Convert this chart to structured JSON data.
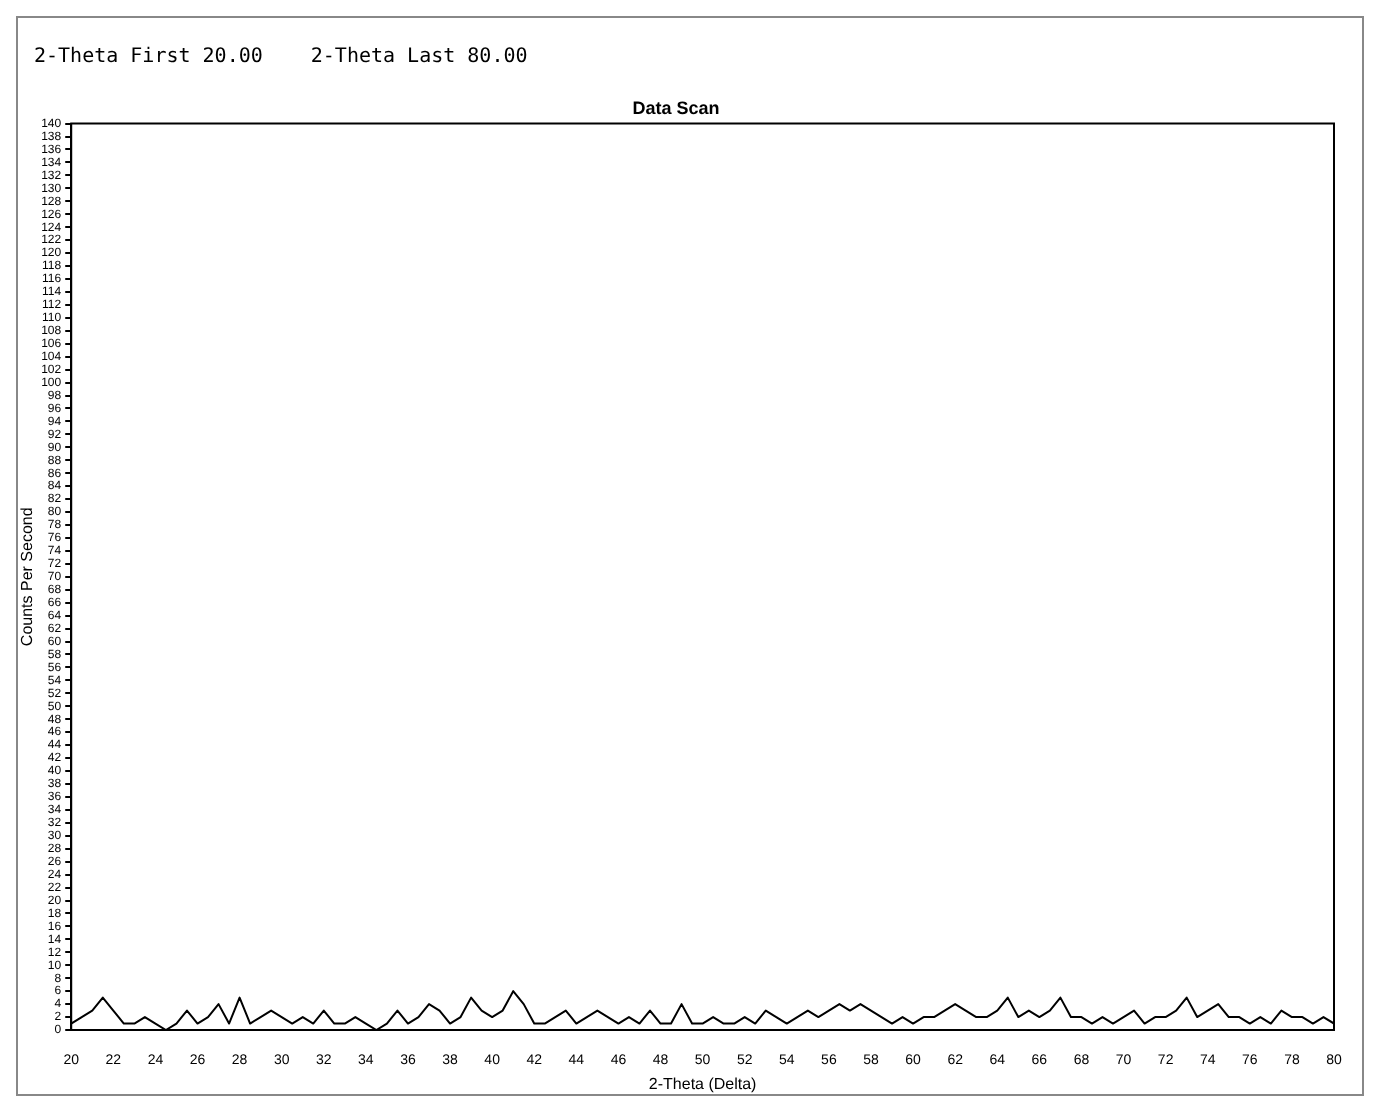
{
  "chart_data": {
    "type": "line",
    "title": "Data Scan",
    "xlabel": "2-Theta (Delta)",
    "ylabel": "Counts Per Second",
    "annotations": [
      "2-Theta First 20.00",
      "2-Theta Last 80.00"
    ],
    "x": [
      20,
      20.5,
      21,
      21.5,
      22,
      22.5,
      23,
      23.5,
      24,
      24.5,
      25,
      25.5,
      26,
      26.5,
      27,
      27.5,
      28,
      28.5,
      29,
      29.5,
      30,
      30.5,
      31,
      31.5,
      32,
      32.5,
      33,
      33.5,
      34,
      34.5,
      35,
      35.5,
      36,
      36.5,
      37,
      37.5,
      38,
      38.5,
      39,
      39.5,
      40,
      40.5,
      41,
      41.5,
      42,
      42.5,
      43,
      43.5,
      44,
      44.5,
      45,
      45.5,
      46,
      46.5,
      47,
      47.5,
      48,
      48.5,
      49,
      49.5,
      50,
      50.5,
      51,
      51.5,
      52,
      52.5,
      53,
      53.5,
      54,
      54.5,
      55,
      55.5,
      56,
      56.5,
      57,
      57.5,
      58,
      58.5,
      59,
      59.5,
      60,
      60.5,
      61,
      61.5,
      62,
      62.5,
      63,
      63.5,
      64,
      64.5,
      65,
      65.5,
      66,
      66.5,
      67,
      67.5,
      68,
      68.5,
      69,
      69.5,
      70,
      70.5,
      71,
      71.5,
      72,
      72.5,
      73,
      73.5,
      74,
      74.5,
      75,
      75.5,
      76,
      76.5,
      77,
      77.5,
      78,
      78.5,
      79,
      79.5,
      80
    ],
    "series": [
      {
        "color": "#000000",
        "values": [
          1,
          2,
          3,
          5,
          3,
          1,
          1,
          2,
          1,
          0,
          1,
          3,
          1,
          2,
          4,
          1,
          5,
          1,
          2,
          3,
          2,
          1,
          2,
          1,
          3,
          1,
          1,
          2,
          1,
          0,
          1,
          3,
          1,
          2,
          4,
          3,
          1,
          2,
          5,
          3,
          2,
          3,
          6,
          4,
          1,
          1,
          2,
          3,
          1,
          2,
          3,
          2,
          1,
          2,
          1,
          3,
          1,
          1,
          4,
          1,
          1,
          2,
          1,
          1,
          2,
          1,
          3,
          2,
          1,
          2,
          3,
          2,
          3,
          4,
          3,
          4,
          3,
          2,
          1,
          2,
          1,
          2,
          2,
          3,
          4,
          3,
          2,
          2,
          3,
          5,
          2,
          3,
          2,
          3,
          5,
          2,
          2,
          1,
          2,
          1,
          2,
          3,
          1,
          2,
          2,
          3,
          5,
          2,
          3,
          4,
          2,
          2,
          1,
          2,
          1,
          3,
          2,
          2,
          1,
          2,
          1
        ]
      }
    ],
    "xlim": [
      20,
      80
    ],
    "xticks": [
      20,
      22,
      24,
      26,
      28,
      30,
      32,
      34,
      36,
      38,
      40,
      42,
      44,
      46,
      48,
      50,
      52,
      54,
      56,
      58,
      60,
      62,
      64,
      66,
      68,
      70,
      72,
      74,
      76,
      78,
      80
    ],
    "ylim": [
      0,
      140
    ],
    "yticks": [
      0,
      2,
      4,
      6,
      8,
      10,
      12,
      14,
      16,
      18,
      20,
      22,
      24,
      26,
      28,
      30,
      32,
      34,
      36,
      38,
      40,
      42,
      44,
      46,
      48,
      50,
      52,
      54,
      56,
      58,
      60,
      62,
      64,
      66,
      68,
      70,
      72,
      74,
      76,
      78,
      80,
      82,
      84,
      86,
      88,
      90,
      92,
      94,
      96,
      98,
      100,
      102,
      104,
      106,
      108,
      110,
      112,
      114,
      116,
      118,
      120,
      122,
      124,
      126,
      128,
      130,
      132,
      134,
      136,
      138,
      140
    ],
    "grid": false,
    "legend": false,
    "marker": "none",
    "line_style": "solid"
  }
}
